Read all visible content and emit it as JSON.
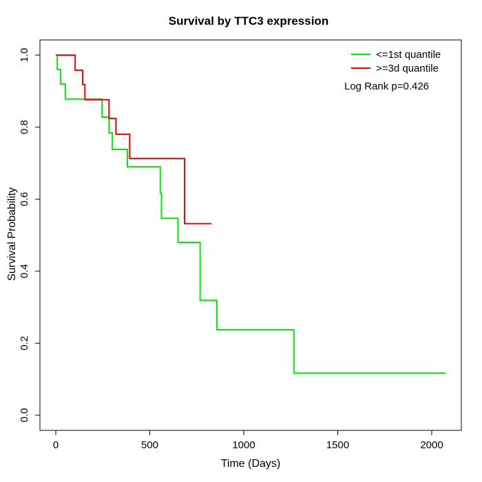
{
  "chart_data": {
    "type": "line",
    "subtype": "kaplan-meier-step",
    "title": "Survival by TTC3 expression",
    "xlabel": "Time (Days)",
    "ylabel": "Survival Probability",
    "xlim": [
      0,
      2100
    ],
    "ylim": [
      0.0,
      1.0
    ],
    "x_ticks": [
      0,
      500,
      1000,
      1500,
      2000
    ],
    "y_ticks": [
      "0.0",
      "0.2",
      "0.4",
      "0.6",
      "0.8",
      "1.0"
    ],
    "grid": false,
    "box": true,
    "box_color": "#000000",
    "legend_position": "top-right",
    "annotations": [
      {
        "text": "Log Rank p=0.426"
      }
    ],
    "series": [
      {
        "name": "<=1st quantile",
        "color": "#00ee00",
        "steps": [
          [
            0,
            1.0
          ],
          [
            8,
            0.96
          ],
          [
            25,
            0.92
          ],
          [
            51,
            0.878
          ],
          [
            246,
            0.828
          ],
          [
            283,
            0.784
          ],
          [
            301,
            0.738
          ],
          [
            381,
            0.69
          ],
          [
            556,
            0.617
          ],
          [
            562,
            0.547
          ],
          [
            650,
            0.48
          ],
          [
            768,
            0.319
          ],
          [
            857,
            0.237
          ],
          [
            1267,
            0.117
          ],
          [
            2073,
            0.117
          ]
        ]
      },
      {
        "name": ">=3d quantile",
        "color": "#ff0000",
        "steps": [
          [
            0,
            1.0
          ],
          [
            103,
            0.958
          ],
          [
            143,
            0.918
          ],
          [
            155,
            0.876
          ],
          [
            283,
            0.824
          ],
          [
            320,
            0.78
          ],
          [
            393,
            0.713
          ],
          [
            685,
            0.532
          ],
          [
            828,
            0.532
          ]
        ]
      }
    ]
  }
}
